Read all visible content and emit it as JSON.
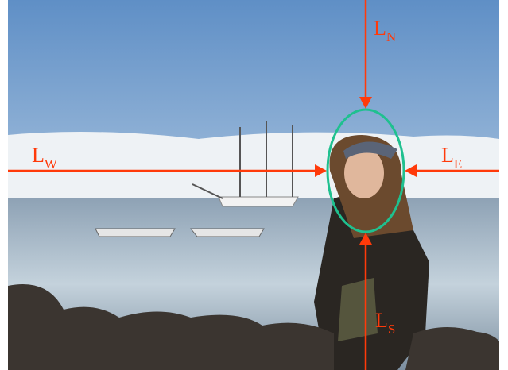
{
  "labels": {
    "north": {
      "letter": "L",
      "subscript": "N"
    },
    "west": {
      "letter": "L",
      "subscript": "W"
    },
    "east": {
      "letter": "L",
      "subscript": "E"
    },
    "south": {
      "letter": "L",
      "subscript": "S"
    }
  }
}
